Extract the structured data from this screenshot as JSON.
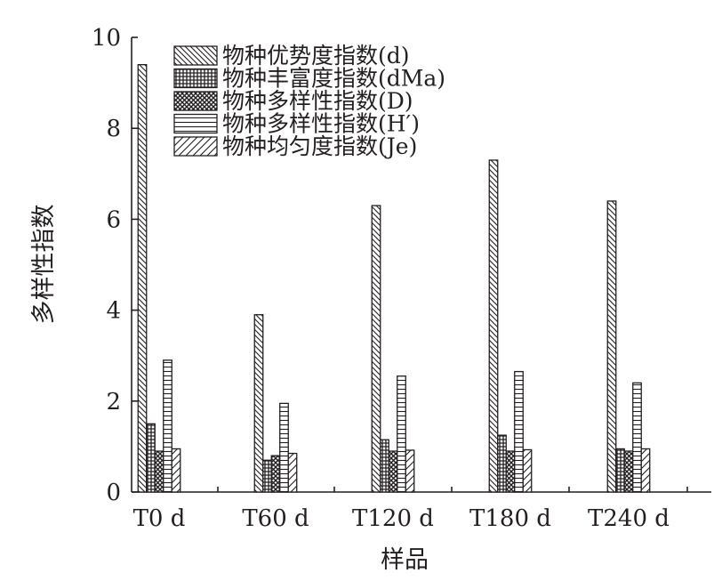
{
  "chart_data": {
    "type": "bar",
    "title": "",
    "xlabel": "样品",
    "ylabel": "多样性指数",
    "ylim": [
      0,
      10
    ],
    "yticks": [
      0,
      2,
      4,
      6,
      8,
      10
    ],
    "categories": [
      "T0 d",
      "T60 d",
      "T120 d",
      "T180 d",
      "T240 d"
    ],
    "series": [
      {
        "name": "物种优势度指数(d)",
        "pattern": "diag-back",
        "values": [
          9.4,
          3.9,
          6.3,
          7.3,
          6.4
        ]
      },
      {
        "name": "物种丰富度指数(dMa)",
        "pattern": "grid",
        "values": [
          1.5,
          0.7,
          1.15,
          1.25,
          0.95
        ]
      },
      {
        "name": "物种多样性指数(D)",
        "pattern": "crosshatch",
        "values": [
          0.9,
          0.8,
          0.9,
          0.9,
          0.9
        ]
      },
      {
        "name": "物种多样性指数(H′)",
        "pattern": "horizontal",
        "values": [
          2.9,
          1.95,
          2.55,
          2.65,
          2.4
        ]
      },
      {
        "name": "物种均匀度指数(Je)",
        "pattern": "diag-fwd",
        "values": [
          0.95,
          0.85,
          0.92,
          0.93,
          0.95
        ]
      }
    ],
    "legend": "top-left",
    "grid": false
  }
}
